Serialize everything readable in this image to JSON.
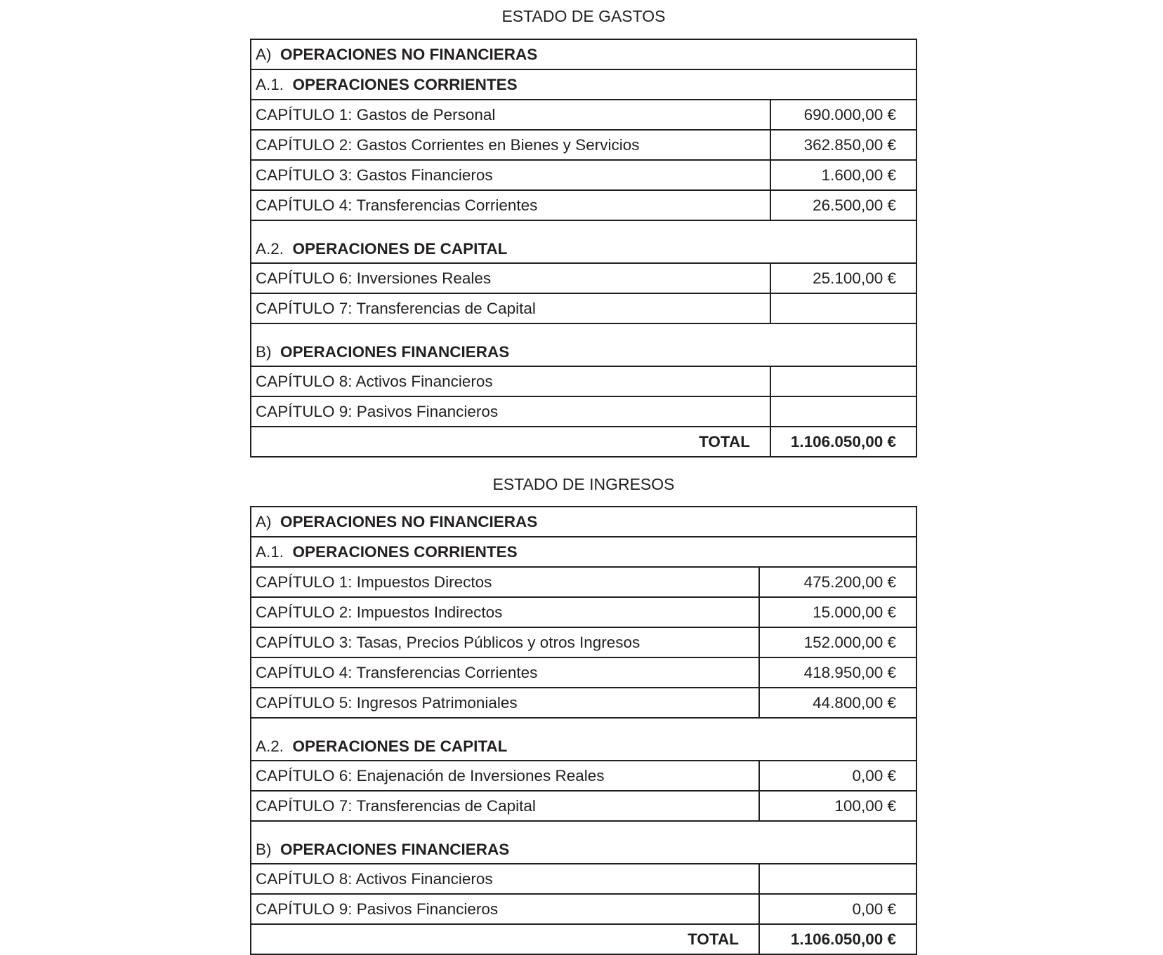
{
  "gastos": {
    "title": "ESTADO DE GASTOS",
    "rows": [
      {
        "type": "section",
        "prefix": "A)",
        "label": "OPERACIONES NO FINANCIERAS"
      },
      {
        "type": "section",
        "prefix": "A.1.",
        "label": "OPERACIONES CORRIENTES"
      },
      {
        "type": "item",
        "label": "CAPÍTULO 1: Gastos de Personal",
        "value": "690.000,00 €"
      },
      {
        "type": "item",
        "label": "CAPÍTULO 2: Gastos Corrientes en Bienes y Servicios",
        "value": "362.850,00 €"
      },
      {
        "type": "item",
        "label": "CAPÍTULO 3: Gastos Financieros",
        "value": "1.600,00 €"
      },
      {
        "type": "item",
        "label": "CAPÍTULO 4: Transferencias Corrientes",
        "value": "26.500,00 €"
      },
      {
        "type": "section",
        "tall": true,
        "prefix": "A.2.",
        "label": "OPERACIONES DE CAPITAL"
      },
      {
        "type": "item",
        "label": "CAPÍTULO 6: Inversiones Reales",
        "value": "25.100,00 €"
      },
      {
        "type": "item",
        "label": "CAPÍTULO 7: Transferencias de Capital",
        "value": ""
      },
      {
        "type": "section",
        "tall": true,
        "prefix": "B)",
        "label": "OPERACIONES FINANCIERAS"
      },
      {
        "type": "item",
        "label": "CAPÍTULO 8: Activos Financieros",
        "value": ""
      },
      {
        "type": "item",
        "label": "CAPÍTULO 9: Pasivos Financieros",
        "value": ""
      },
      {
        "type": "total",
        "label": "TOTAL",
        "value": "1.106.050,00 €"
      }
    ]
  },
  "ingresos": {
    "title": "ESTADO DE INGRESOS",
    "rows": [
      {
        "type": "section",
        "prefix": "A)",
        "label": "OPERACIONES NO FINANCIERAS"
      },
      {
        "type": "section",
        "prefix": "A.1.",
        "label": "OPERACIONES CORRIENTES"
      },
      {
        "type": "item",
        "label": "CAPÍTULO 1: Impuestos Directos",
        "value": "475.200,00 €"
      },
      {
        "type": "item",
        "label": "CAPÍTULO 2: Impuestos Indirectos",
        "value": "15.000,00 €"
      },
      {
        "type": "item",
        "label": "CAPÍTULO 3: Tasas, Precios Públicos y otros Ingresos",
        "value": "152.000,00 €"
      },
      {
        "type": "item",
        "label": "CAPÍTULO 4: Transferencias Corrientes",
        "value": "418.950,00 €"
      },
      {
        "type": "item",
        "label": "CAPÍTULO 5: Ingresos Patrimoniales",
        "value": "44.800,00 €"
      },
      {
        "type": "section",
        "tall": true,
        "prefix": "A.2.",
        "label": "OPERACIONES DE CAPITAL"
      },
      {
        "type": "item",
        "label": "CAPÍTULO 6: Enajenación de Inversiones Reales",
        "value": "0,00 €"
      },
      {
        "type": "item",
        "label": "CAPÍTULO 7: Transferencias de Capital",
        "value": "100,00 €"
      },
      {
        "type": "section",
        "tall": true,
        "prefix": "B)",
        "label": "OPERACIONES FINANCIERAS"
      },
      {
        "type": "item",
        "label": "CAPÍTULO 8: Activos Financieros",
        "value": ""
      },
      {
        "type": "item",
        "label": "CAPÍTULO 9: Pasivos Financieros",
        "value": "0,00 €"
      },
      {
        "type": "total",
        "label": "TOTAL",
        "value": "1.106.050,00 €"
      }
    ]
  }
}
